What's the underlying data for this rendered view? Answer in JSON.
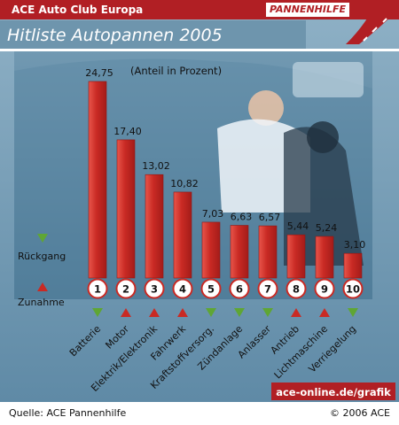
{
  "header": {
    "brand": "ACE Auto Club Europa",
    "section": "PANNENHILFE",
    "title": "Hitliste Autopannen 2005"
  },
  "legend": {
    "decline_label": "Rückgang",
    "increase_label": "Zunahme"
  },
  "footer": {
    "source": "Quelle: ACE Pannenhilfe",
    "copyright": "© 2006 ACE",
    "url": "ace-online.de/grafik"
  },
  "colors": {
    "brand_red": "#b11f24",
    "bar_red": "#d4382f",
    "trend_green": "#5fa634",
    "photo_blue": "#4f7f9c"
  },
  "chart_data": {
    "type": "bar",
    "title": "Hitliste Autopannen 2005",
    "ylabel": "(Anteil in Prozent)",
    "ylim": [
      0,
      24.75
    ],
    "categories": [
      "Batterie",
      "Motor",
      "Elektrik/Elektronik",
      "Fahrwerk",
      "Kraftstoffversorg.",
      "Zündanlage",
      "Anlasser",
      "Antrieb",
      "Lichtmaschine",
      "Verriegelung"
    ],
    "ranks": [
      "1",
      "2",
      "3",
      "4",
      "5",
      "6",
      "7",
      "8",
      "9",
      "10"
    ],
    "values": [
      24.75,
      17.4,
      13.02,
      10.82,
      7.03,
      6.63,
      6.57,
      5.44,
      5.24,
      3.1
    ],
    "value_labels": [
      "24,75",
      "17,40",
      "13,02",
      "10,82",
      "7,03",
      "6,63",
      "6,57",
      "5,44",
      "5,24",
      "3,10"
    ],
    "trend": [
      "Rückgang",
      "Zunahme",
      "Zunahme",
      "Zunahme",
      "Rückgang",
      "Rückgang",
      "Rückgang",
      "Zunahme",
      "Zunahme",
      "Rückgang"
    ]
  }
}
